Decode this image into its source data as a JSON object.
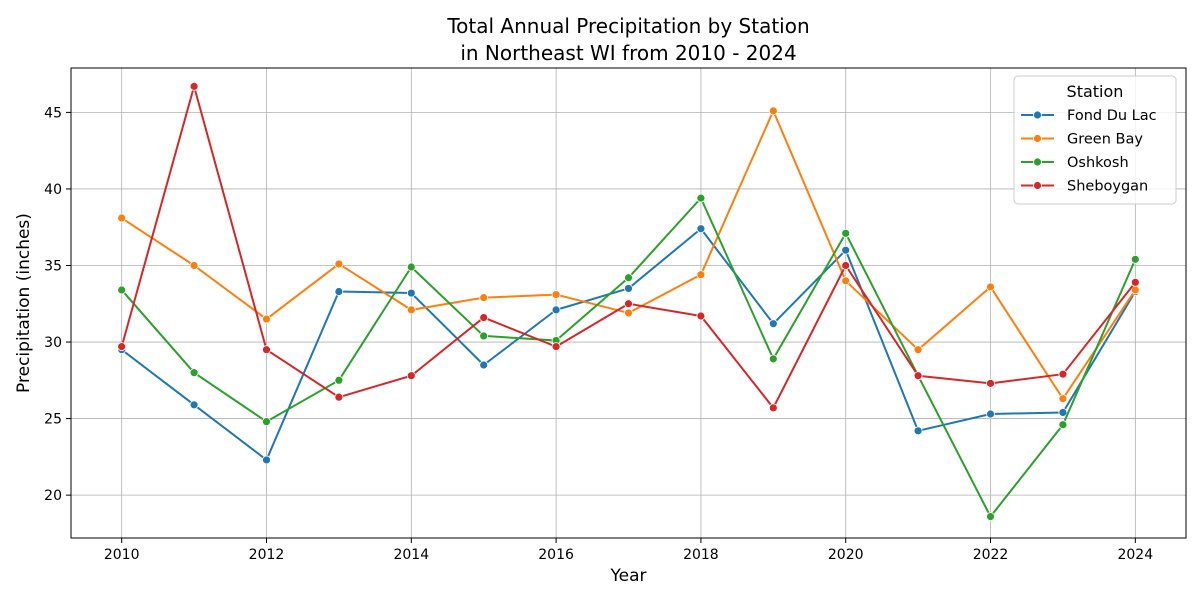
{
  "chart_data": {
    "type": "line",
    "title_line1": "Total Annual Precipitation by Station",
    "title_line2": "in Northeast WI from 2010 - 2024",
    "xlabel": "Year",
    "ylabel": "Precipitation (inches)",
    "xlim": [
      2009.3,
      2024.7
    ],
    "ylim": [
      17.2,
      47.9
    ],
    "x_ticks": [
      2010,
      2012,
      2014,
      2016,
      2018,
      2020,
      2022,
      2024
    ],
    "y_ticks": [
      20,
      25,
      30,
      35,
      40,
      45
    ],
    "grid": true,
    "legend_title": "Station",
    "legend_position": "top-right",
    "x": [
      2010,
      2011,
      2012,
      2013,
      2014,
      2015,
      2016,
      2017,
      2018,
      2019,
      2020,
      2021,
      2022,
      2023,
      2024
    ],
    "series": [
      {
        "name": "Fond Du Lac",
        "color": "#1f77b4",
        "values": [
          29.5,
          25.9,
          22.3,
          33.3,
          33.2,
          28.5,
          32.1,
          33.5,
          37.4,
          31.2,
          36.0,
          24.2,
          25.3,
          25.4,
          33.3
        ]
      },
      {
        "name": "Green Bay",
        "color": "#ff7f0e",
        "values": [
          38.1,
          35.0,
          31.5,
          35.1,
          32.1,
          32.9,
          33.1,
          31.9,
          34.4,
          45.1,
          34.0,
          29.5,
          33.6,
          26.3,
          33.4
        ]
      },
      {
        "name": "Oshkosh",
        "color": "#2ca02c",
        "values": [
          33.4,
          28.0,
          24.8,
          27.5,
          34.9,
          30.4,
          30.1,
          34.2,
          39.4,
          28.9,
          37.1,
          27.8,
          18.6,
          24.6,
          35.4
        ]
      },
      {
        "name": "Sheboygan",
        "color": "#d62728",
        "values": [
          29.7,
          46.7,
          29.5,
          26.4,
          27.8,
          31.6,
          29.7,
          32.5,
          31.7,
          25.7,
          35.0,
          27.8,
          27.3,
          27.9,
          33.9
        ]
      }
    ]
  }
}
